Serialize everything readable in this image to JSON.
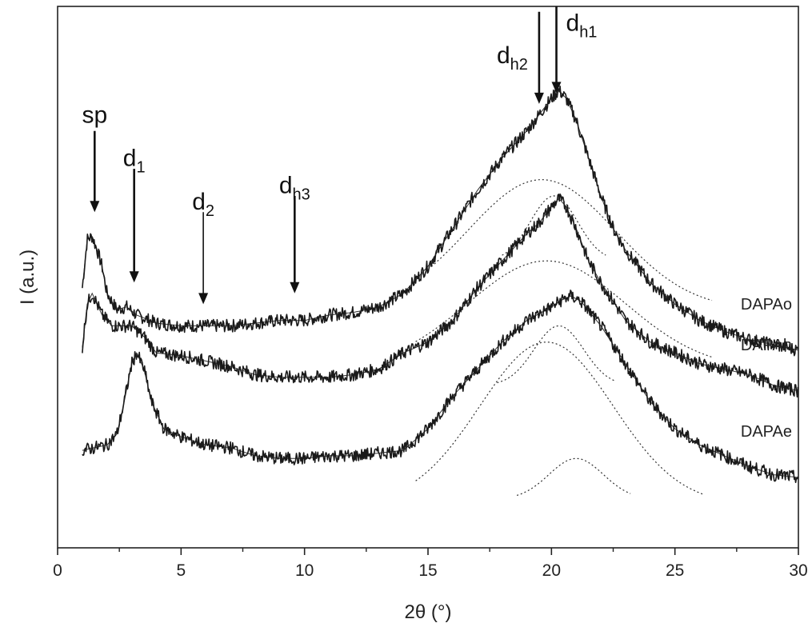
{
  "chart_data": {
    "type": "line",
    "title": "",
    "xlabel": "2θ (°)",
    "ylabel": "I (a.u.)",
    "xlim": [
      0,
      30
    ],
    "ylim": [
      0,
      1
    ],
    "x_ticks": [
      0,
      5,
      10,
      15,
      20,
      25,
      30
    ],
    "x_minor_step": 2.5,
    "y_ticks_shown": false,
    "grid": false,
    "legend": "none",
    "series": [
      {
        "name": "DAPAo",
        "points": [
          [
            1.0,
            0.48
          ],
          [
            1.2,
            0.57
          ],
          [
            1.4,
            0.575
          ],
          [
            1.6,
            0.55
          ],
          [
            1.8,
            0.52
          ],
          [
            2.0,
            0.47
          ],
          [
            2.4,
            0.44
          ],
          [
            2.8,
            0.445
          ],
          [
            3.2,
            0.43
          ],
          [
            4,
            0.415
          ],
          [
            5,
            0.41
          ],
          [
            6,
            0.41
          ],
          [
            7,
            0.41
          ],
          [
            8,
            0.415
          ],
          [
            9,
            0.42
          ],
          [
            10,
            0.42
          ],
          [
            11,
            0.43
          ],
          [
            12,
            0.435
          ],
          [
            13,
            0.445
          ],
          [
            14,
            0.47
          ],
          [
            15,
            0.52
          ],
          [
            16,
            0.59
          ],
          [
            17,
            0.66
          ],
          [
            18,
            0.72
          ],
          [
            19,
            0.77
          ],
          [
            19.5,
            0.8
          ],
          [
            20,
            0.83
          ],
          [
            20.3,
            0.845
          ],
          [
            20.6,
            0.83
          ],
          [
            21,
            0.79
          ],
          [
            21.5,
            0.72
          ],
          [
            22,
            0.65
          ],
          [
            22.5,
            0.59
          ],
          [
            23,
            0.55
          ],
          [
            24,
            0.49
          ],
          [
            25,
            0.45
          ],
          [
            26,
            0.42
          ],
          [
            27,
            0.4
          ],
          [
            28,
            0.385
          ],
          [
            29,
            0.375
          ],
          [
            30,
            0.365
          ]
        ]
      },
      {
        "name": "DAPAh",
        "points": [
          [
            1.0,
            0.37
          ],
          [
            1.2,
            0.45
          ],
          [
            1.4,
            0.47
          ],
          [
            1.6,
            0.45
          ],
          [
            1.8,
            0.43
          ],
          [
            2.2,
            0.41
          ],
          [
            3,
            0.41
          ],
          [
            3.5,
            0.39
          ],
          [
            4,
            0.36
          ],
          [
            5,
            0.355
          ],
          [
            6,
            0.345
          ],
          [
            7,
            0.335
          ],
          [
            8,
            0.32
          ],
          [
            9,
            0.315
          ],
          [
            10,
            0.315
          ],
          [
            11,
            0.315
          ],
          [
            12,
            0.32
          ],
          [
            13,
            0.33
          ],
          [
            14,
            0.36
          ],
          [
            15,
            0.38
          ],
          [
            16,
            0.42
          ],
          [
            17,
            0.48
          ],
          [
            18,
            0.53
          ],
          [
            19,
            0.58
          ],
          [
            19.5,
            0.6
          ],
          [
            20,
            0.63
          ],
          [
            20.3,
            0.645
          ],
          [
            20.6,
            0.63
          ],
          [
            21,
            0.59
          ],
          [
            21.5,
            0.53
          ],
          [
            22,
            0.49
          ],
          [
            23,
            0.42
          ],
          [
            24,
            0.38
          ],
          [
            25,
            0.36
          ],
          [
            26,
            0.34
          ],
          [
            27,
            0.33
          ],
          [
            28,
            0.32
          ],
          [
            29,
            0.3
          ],
          [
            30,
            0.29
          ]
        ]
      },
      {
        "name": "DAPAe",
        "points": [
          [
            1.0,
            0.18
          ],
          [
            1.5,
            0.185
          ],
          [
            2,
            0.19
          ],
          [
            2.4,
            0.21
          ],
          [
            2.7,
            0.27
          ],
          [
            3.0,
            0.34
          ],
          [
            3.2,
            0.36
          ],
          [
            3.5,
            0.33
          ],
          [
            3.8,
            0.27
          ],
          [
            4.3,
            0.22
          ],
          [
            5,
            0.205
          ],
          [
            6,
            0.19
          ],
          [
            7,
            0.185
          ],
          [
            8,
            0.17
          ],
          [
            9,
            0.165
          ],
          [
            10,
            0.165
          ],
          [
            11,
            0.17
          ],
          [
            12,
            0.17
          ],
          [
            13,
            0.175
          ],
          [
            14,
            0.18
          ],
          [
            15,
            0.22
          ],
          [
            16,
            0.28
          ],
          [
            17,
            0.33
          ],
          [
            18,
            0.38
          ],
          [
            19,
            0.42
          ],
          [
            20,
            0.445
          ],
          [
            20.5,
            0.46
          ],
          [
            20.8,
            0.465
          ],
          [
            21.2,
            0.455
          ],
          [
            22,
            0.41
          ],
          [
            23,
            0.34
          ],
          [
            24,
            0.27
          ],
          [
            25,
            0.22
          ],
          [
            26,
            0.19
          ],
          [
            27,
            0.17
          ],
          [
            28,
            0.15
          ],
          [
            29,
            0.135
          ],
          [
            30,
            0.13
          ]
        ]
      }
    ],
    "fitted_components": {
      "dashed_peaks": [
        {
          "series": "DAPAo",
          "center": 19.6,
          "sigma": 3.0,
          "height": 0.24,
          "baseline": 0.44,
          "range": [
            14.5,
            26.5
          ]
        },
        {
          "series": "DAPAo",
          "center": 20.1,
          "sigma": 0.95,
          "height": 0.12,
          "baseline": 0.53,
          "range": [
            18.0,
            22.2
          ]
        },
        {
          "series": "DAPAh",
          "center": 19.8,
          "sigma": 3.2,
          "height": 0.2,
          "baseline": 0.33,
          "range": [
            14.5,
            26.5
          ]
        },
        {
          "series": "DAPAh",
          "center": 20.3,
          "sigma": 1.0,
          "height": 0.11,
          "baseline": 0.3,
          "range": [
            17.8,
            22.6
          ]
        },
        {
          "series": "DAPAe",
          "center": 19.8,
          "sigma": 2.7,
          "height": 0.3,
          "baseline": 0.08,
          "range": [
            14.5,
            26.2
          ]
        },
        {
          "series": "DAPAe",
          "center": 21.0,
          "sigma": 1.1,
          "height": 0.075,
          "baseline": 0.09,
          "range": [
            18.6,
            23.2
          ]
        }
      ]
    },
    "annotations": [
      {
        "label": "sp",
        "sub": "",
        "x": 1.5,
        "arrow_y_start": 0.77,
        "arrow_y_end": 0.62,
        "label_y": 0.785,
        "bold": true
      },
      {
        "label": "d",
        "sub": "1",
        "x": 3.1,
        "arrow_y_start": 0.7,
        "arrow_y_end": 0.49,
        "label_y": 0.705,
        "bold": true
      },
      {
        "label": "d",
        "sub": "2",
        "x": 5.9,
        "arrow_y_start": 0.62,
        "arrow_y_end": 0.45,
        "label_y": 0.625,
        "bold": false
      },
      {
        "label": "d",
        "sub": "h3",
        "x": 9.6,
        "arrow_y_start": 0.65,
        "arrow_y_end": 0.47,
        "label_y": 0.655,
        "bold": true
      },
      {
        "label": "d",
        "sub": "h2",
        "x": 19.5,
        "arrow_y_start": 0.99,
        "arrow_y_end": 0.82,
        "label_y": 0.895,
        "bold": true
      },
      {
        "label": "d",
        "sub": "h1",
        "x": 20.2,
        "arrow_y_start": 1.0,
        "arrow_y_end": 0.84,
        "label_y": 0.955,
        "bold": true
      }
    ]
  }
}
